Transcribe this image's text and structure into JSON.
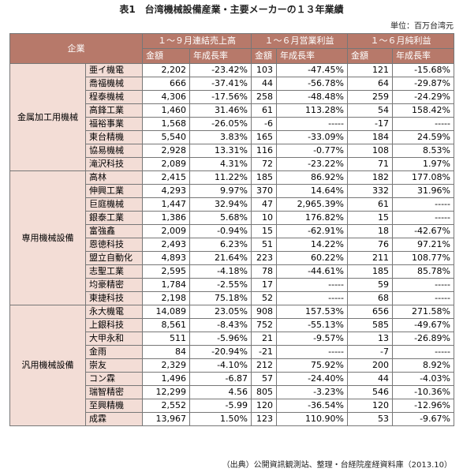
{
  "title": "表1　台湾機械設備産業・主要メーカーの１３年業績",
  "unit": "単位：百万台湾元",
  "table": {
    "header": {
      "company": "企業",
      "groups": [
        "１～９月連結売上高",
        "１～６月営業利益",
        "１～６月純利益"
      ],
      "sub": [
        "金額",
        "年成長率",
        "金額",
        "年成長率",
        "金額",
        "年成長率"
      ]
    },
    "sections": [
      {
        "name": "金属加工用機械",
        "rows": [
          [
            "亜イ機電",
            "2,202",
            "-23.42%",
            "103",
            "-47.45%",
            "121",
            "-15.68%"
          ],
          [
            "喬福機械",
            "666",
            "-37.41%",
            "44",
            "-56.78%",
            "64",
            "-29.87%"
          ],
          [
            "程泰機械",
            "4,306",
            "-17.56%",
            "258",
            "-48.48%",
            "259",
            "-24.29%"
          ],
          [
            "高鋒工業",
            "1,460",
            "31.46%",
            "61",
            "113.28%",
            "54",
            "158.42%"
          ],
          [
            "福裕事業",
            "1,568",
            "-26.05%",
            "-6",
            "-----",
            "-17",
            "-----"
          ],
          [
            "東台精機",
            "5,540",
            "3.83%",
            "165",
            "-33.09%",
            "184",
            "24.59%"
          ],
          [
            "協易機械",
            "2,928",
            "13.31%",
            "116",
            "-0.77%",
            "108",
            "8.53%"
          ],
          [
            "滝沢科技",
            "2,089",
            "4.31%",
            "72",
            "-23.22%",
            "71",
            "1.97%"
          ]
        ]
      },
      {
        "name": "専用機械設備",
        "rows": [
          [
            "高林",
            "2,415",
            "11.22%",
            "185",
            "86.92%",
            "182",
            "177.08%"
          ],
          [
            "伸興工業",
            "4,293",
            "9.97%",
            "370",
            "14.64%",
            "332",
            "31.96%"
          ],
          [
            "巨庭機械",
            "1,447",
            "32.94%",
            "47",
            "2,965.39%",
            "61",
            "-----"
          ],
          [
            "銀泰工業",
            "1,386",
            "5.68%",
            "10",
            "176.82%",
            "15",
            "-----"
          ],
          [
            "富強鑫",
            "2,009",
            "-0.94%",
            "15",
            "-62.91%",
            "18",
            "-42.67%"
          ],
          [
            "恩徳科技",
            "2,493",
            "6.23%",
            "51",
            "14.22%",
            "76",
            "97.21%"
          ],
          [
            "盟立自動化",
            "4,893",
            "21.64%",
            "223",
            "60.22%",
            "211",
            "108.77%"
          ],
          [
            "志聖工業",
            "2,595",
            "-4.18%",
            "78",
            "-44.61%",
            "185",
            "85.78%"
          ],
          [
            "均豪精密",
            "1,784",
            "-2.55%",
            "17",
            "-----",
            "59",
            "-----"
          ],
          [
            "東捷科技",
            "2,198",
            "75.18%",
            "52",
            "-----",
            "68",
            "-----"
          ]
        ]
      },
      {
        "name": "汎用機械設備",
        "rows": [
          [
            "永大機電",
            "14,089",
            "23.05%",
            "908",
            "157.53%",
            "656",
            "271.58%"
          ],
          [
            "上銀科技",
            "8,561",
            "-8.43%",
            "752",
            "-55.13%",
            "585",
            "-49.67%"
          ],
          [
            "大甲永和",
            "511",
            "-5.96%",
            "21",
            "-9.57%",
            "13",
            "-26.89%"
          ],
          [
            "金雨",
            "84",
            "-20.94%",
            "-21",
            "-----",
            "-7",
            "-----"
          ],
          [
            "崇友",
            "2,329",
            "-4.10%",
            "212",
            "75.92%",
            "200",
            "8.92%"
          ],
          [
            "コン霖",
            "1,496",
            "-6.87",
            "57",
            "-24.40%",
            "44",
            "-4.03%"
          ],
          [
            "瑞智精密",
            "12,299",
            "4.56",
            "805",
            "-3.23%",
            "546",
            "-10.36%"
          ],
          [
            "至興精機",
            "2,552",
            "-5.99",
            "120",
            "-36.54%",
            "120",
            "-12.96%"
          ],
          [
            "成霖",
            "13,967",
            "1.50%",
            "123",
            "110.90%",
            "53",
            "-9.67%"
          ]
        ]
      }
    ]
  },
  "source": "（出典）公開資訊観測站、整理・台経院産経資料庫（2013.10）"
}
